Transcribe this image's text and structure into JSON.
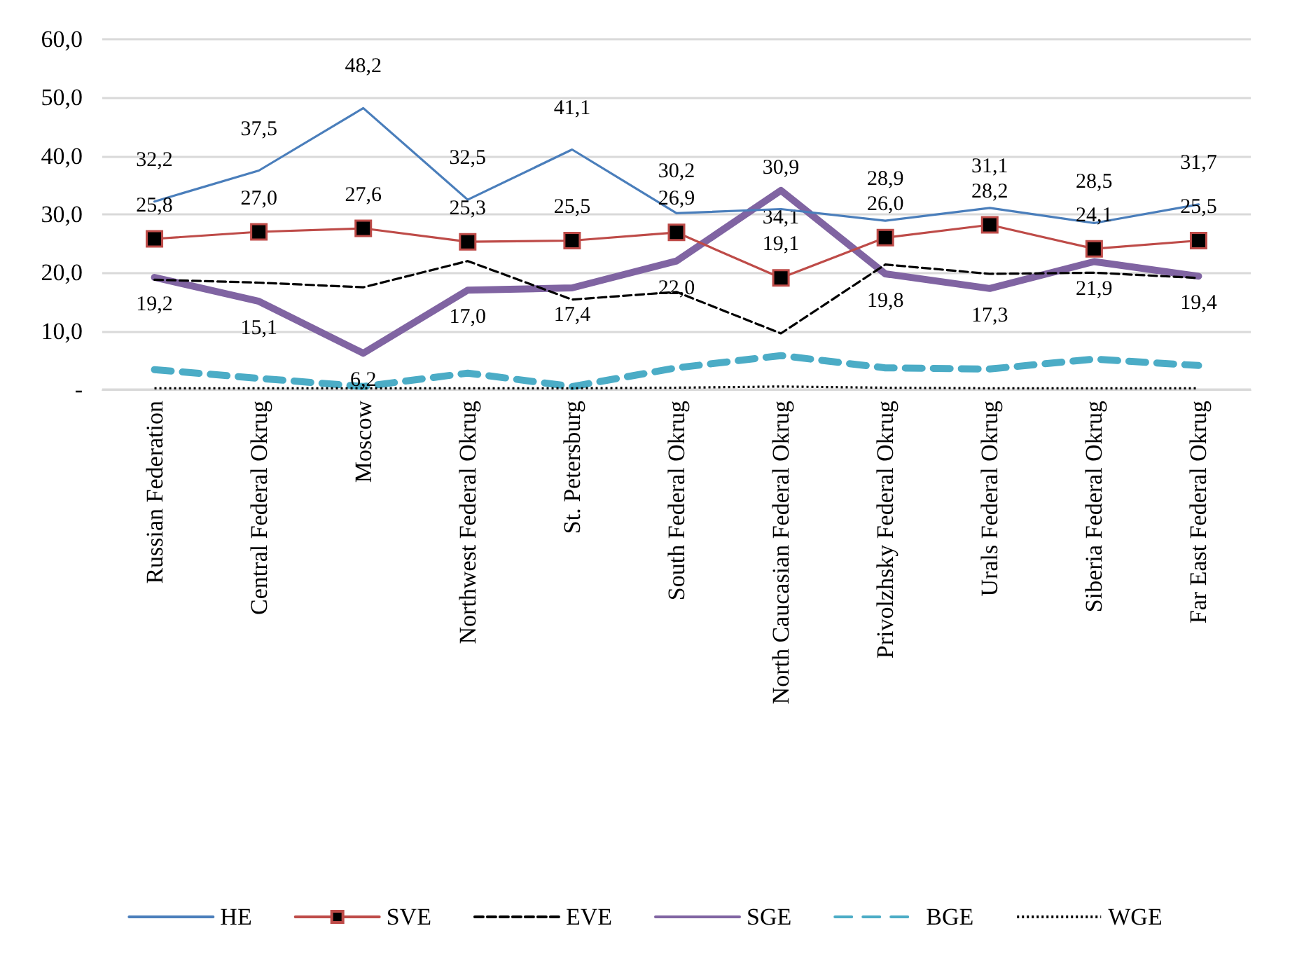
{
  "chart_data": {
    "type": "line",
    "categories": [
      "Russian Federation",
      "Central Federal Okrug",
      "Moscow",
      "Northwest Federal Okrug",
      "St. Petersburg",
      "South Federal Okrug",
      "North Caucasian Federal Okrug",
      "Privolzhsky Federal Okrug",
      "Urals Federal Okrug",
      "Siberia Federal Okrug",
      "Far East Federal Okrug"
    ],
    "series": [
      {
        "name": "HE",
        "color": "#4a7ebb",
        "marker": "none",
        "line_style": "solid",
        "values": [
          32.2,
          37.5,
          48.2,
          32.5,
          41.1,
          30.2,
          30.9,
          28.9,
          31.1,
          28.5,
          31.7
        ],
        "value_labels": [
          "32,2",
          "37,5",
          "48,2",
          "32,5",
          "41,1",
          "30,2",
          "30,9",
          "28,9",
          "31,1",
          "28,5",
          "31,7"
        ]
      },
      {
        "name": "SVE",
        "color": "#be4b48",
        "marker": "square",
        "line_style": "solid",
        "values": [
          25.8,
          27.0,
          27.6,
          25.3,
          25.5,
          26.9,
          19.1,
          26.0,
          28.2,
          24.1,
          25.5
        ],
        "value_labels": [
          "25,8",
          "27,0",
          "27,6",
          "25,3",
          "25,5",
          "26,9",
          "19,1",
          "26,0",
          "28,2",
          "24,1",
          "25,5"
        ]
      },
      {
        "name": "EVE",
        "color": "#000000",
        "marker": "none",
        "line_style": "dashed",
        "values": [
          18.8,
          18.3,
          17.5,
          22.0,
          15.4,
          16.7,
          9.6,
          21.4,
          19.8,
          20.0,
          19.1
        ]
      },
      {
        "name": "SGE",
        "color": "#8064a2",
        "marker": "none",
        "line_style": "solid",
        "values": [
          19.2,
          15.1,
          6.2,
          17.0,
          17.4,
          22.0,
          34.1,
          19.8,
          17.3,
          21.9,
          19.4
        ],
        "value_labels": [
          "19,2",
          "15,1",
          "6,2",
          "17,0",
          "17,4",
          "22,0",
          "34,1",
          "19,8",
          "17,3",
          "21,9",
          "19,4"
        ]
      },
      {
        "name": "BGE",
        "color": "#4bacc6",
        "marker": "none",
        "line_style": "dashed",
        "values": [
          3.4,
          1.9,
          0.5,
          2.8,
          0.5,
          3.7,
          5.8,
          3.7,
          3.5,
          5.2,
          4.1
        ]
      },
      {
        "name": "WGE",
        "color": "#000000",
        "marker": "none",
        "line_style": "dotted",
        "values": [
          0.2,
          0.2,
          0.2,
          0.2,
          0.2,
          0.3,
          0.5,
          0.3,
          0.2,
          0.2,
          0.2
        ]
      }
    ],
    "ylim": [
      0,
      60
    ],
    "yticks": [
      {
        "value": 0,
        "label": "-"
      },
      {
        "value": 10,
        "label": "10,0"
      },
      {
        "value": 20,
        "label": "20,0"
      },
      {
        "value": 30,
        "label": "30,0"
      },
      {
        "value": 40,
        "label": "40,0"
      },
      {
        "value": 50,
        "label": "50,0"
      },
      {
        "value": 60,
        "label": "60,0"
      }
    ],
    "grid": "y",
    "legend": "bottom"
  }
}
